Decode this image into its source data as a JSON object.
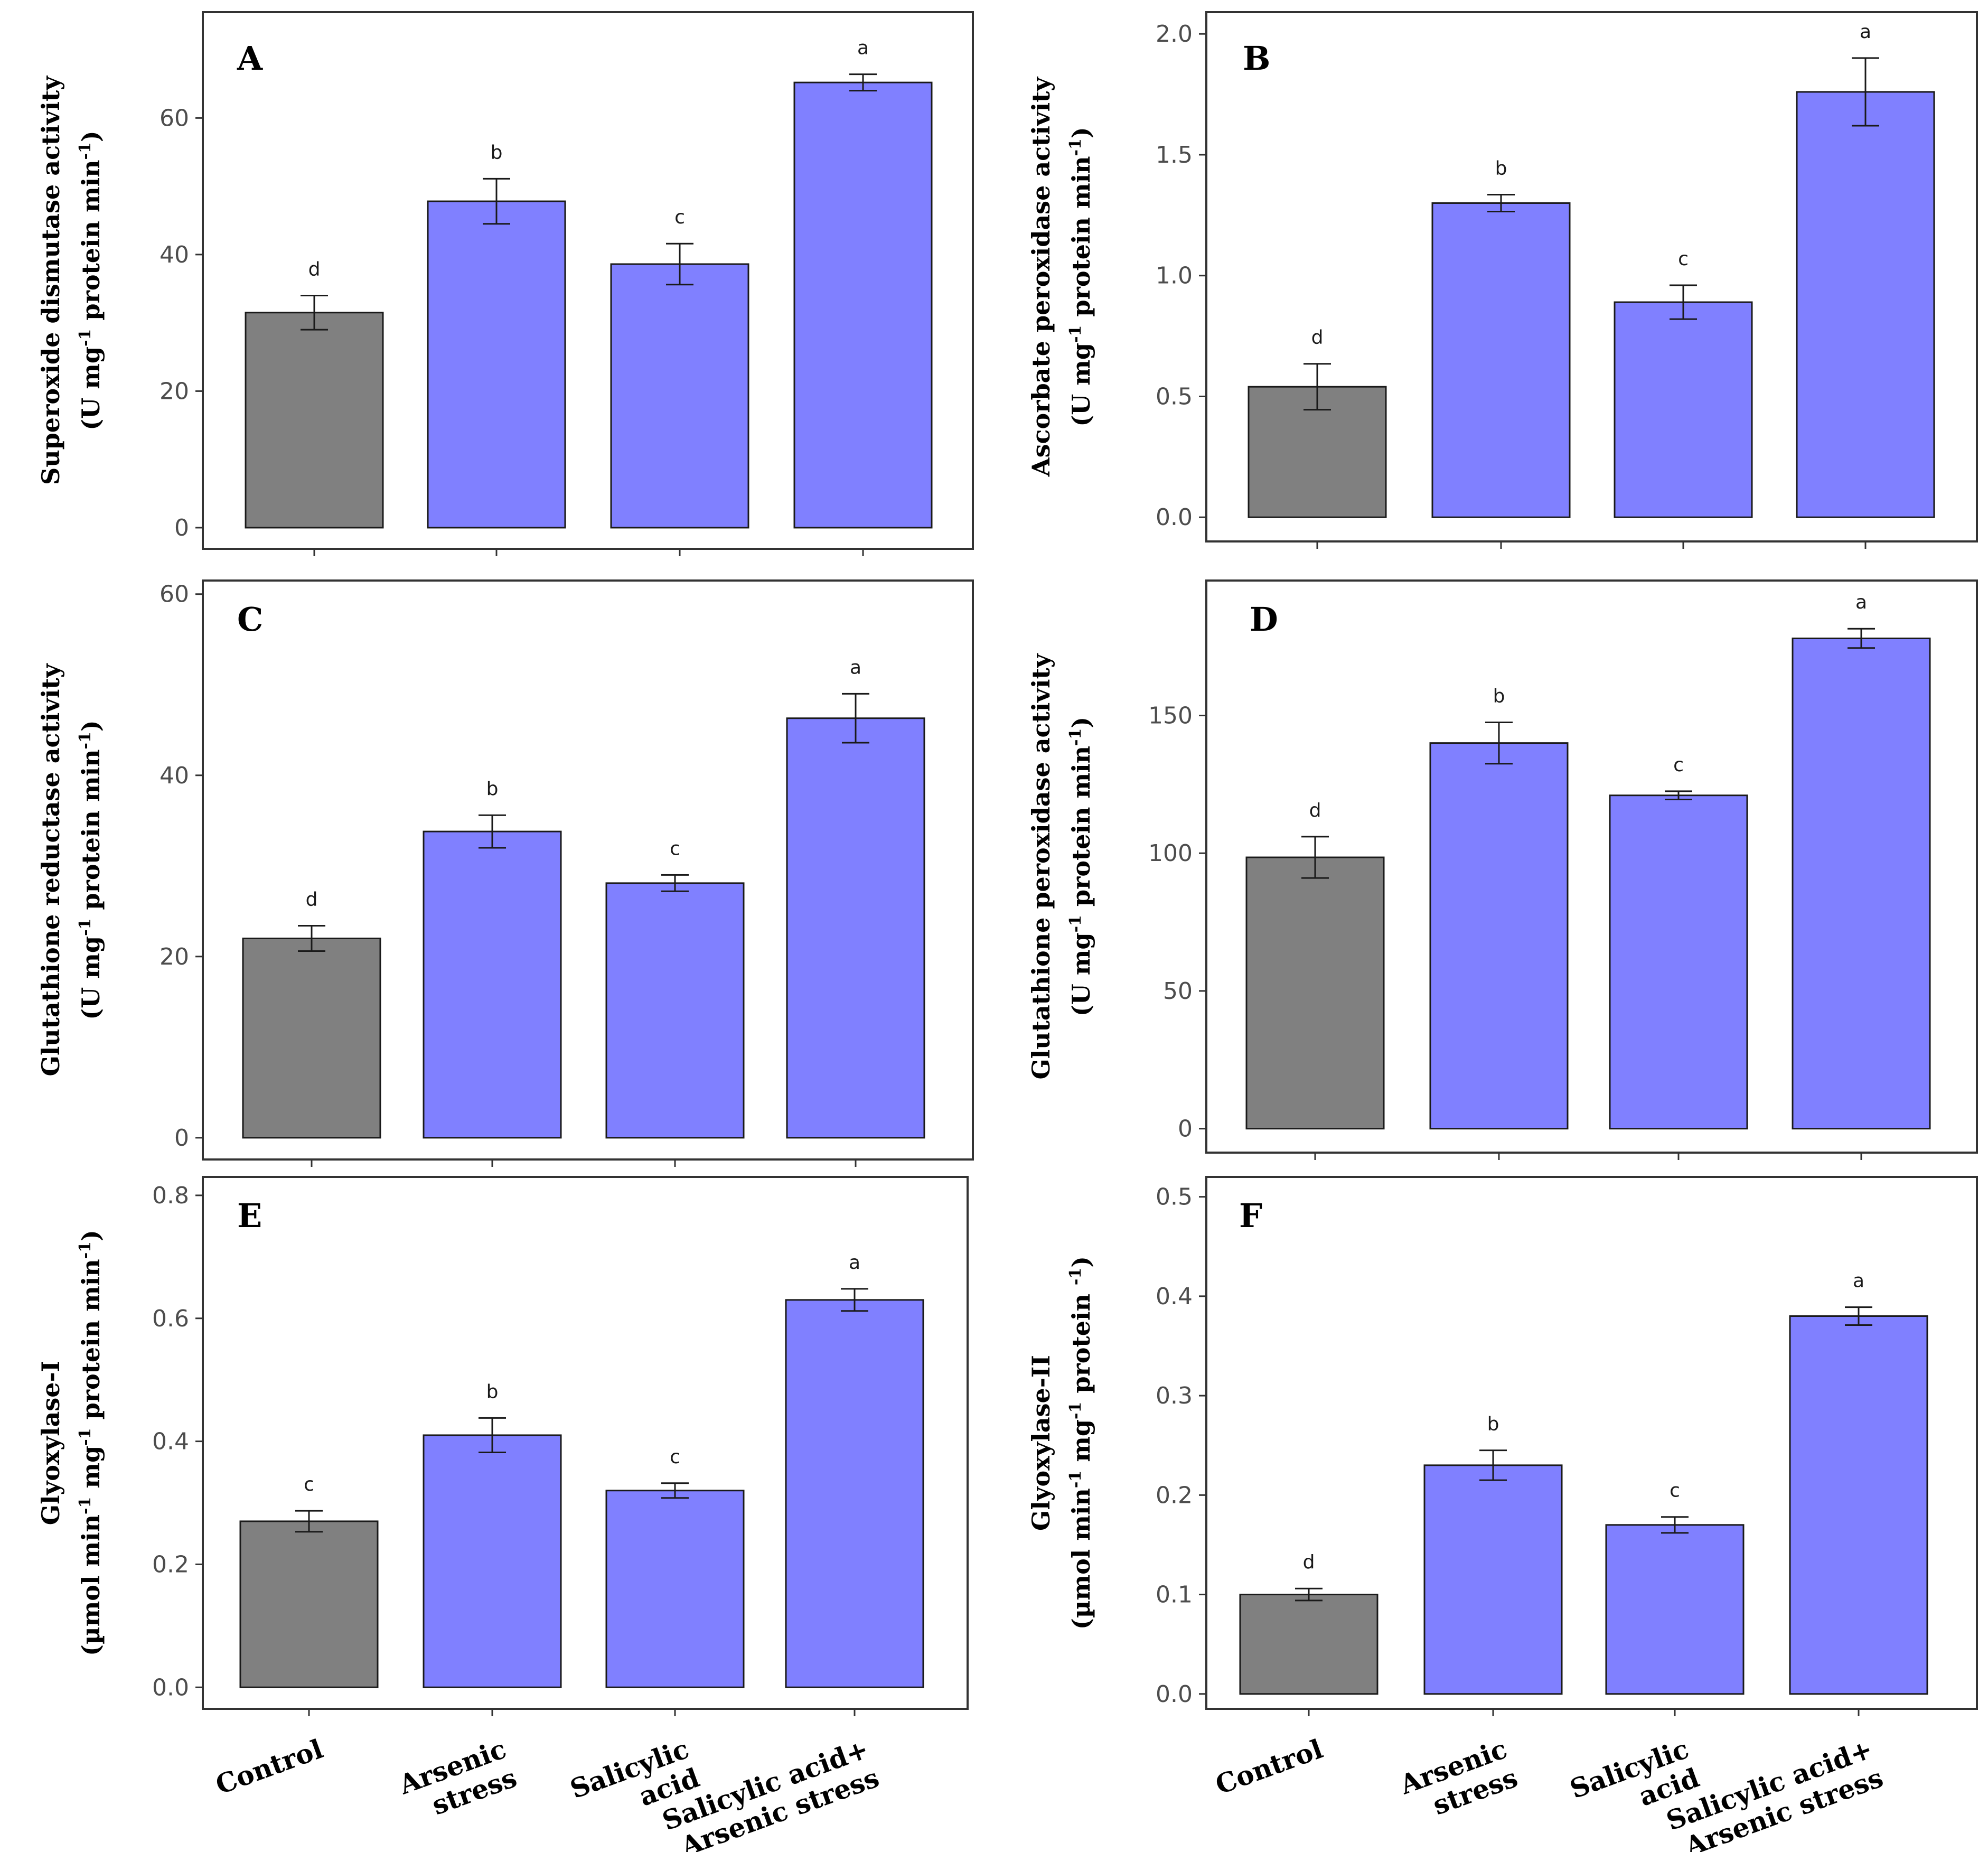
{
  "chart_data": [
    {
      "type": "bar",
      "panel": "A",
      "ylabel_line1": "Superoxide dismutase activity",
      "ylabel_line2": "(U mg-1 protein min-1)",
      "ylabel_line2_parts": [
        "(U mg",
        "-1",
        " protein min",
        "-1",
        ")"
      ],
      "categories": [
        "Control",
        "Arsenic stress",
        "Salicylic acid",
        "Salicylic acid+ Arsenic stress"
      ],
      "values": [
        31.5,
        47.8,
        38.6,
        65.2
      ],
      "errors": [
        2.5,
        3.3,
        3.0,
        1.2
      ],
      "significance": [
        "d",
        "b",
        "c",
        "a"
      ],
      "ylim": [
        -3.1,
        75.5
      ],
      "yticks": [
        0,
        20,
        40,
        60
      ],
      "ytick_labels": [
        "0",
        "20",
        "40",
        "60"
      ]
    },
    {
      "type": "bar",
      "panel": "B",
      "ylabel_line1": "Ascorbate peroxidase activity",
      "ylabel_line2": "(U mg-1 protein min-1)",
      "ylabel_line2_parts": [
        "(U mg",
        "-1",
        " protein min",
        "-1",
        ")"
      ],
      "categories": [
        "Control",
        "Arsenic stress",
        "Salicylic acid",
        "Salicylic acid+ Arsenic stress"
      ],
      "values": [
        0.54,
        1.3,
        0.89,
        1.76
      ],
      "errors": [
        0.095,
        0.035,
        0.07,
        0.14
      ],
      "significance": [
        "d",
        "b",
        "c",
        "a"
      ],
      "ylim": [
        -0.1,
        2.09
      ],
      "yticks": [
        0,
        0.5,
        1.0,
        1.5,
        2.0
      ],
      "ytick_labels": [
        "0.0",
        "0.5",
        "1.0",
        "1.5",
        "2.0"
      ]
    },
    {
      "type": "bar",
      "panel": "C",
      "ylabel_line1": "Glutathione reductase activity",
      "ylabel_line2": "(U mg-1 protein min-1)",
      "ylabel_line2_parts": [
        "(U mg",
        "-1",
        " protein min",
        "-1",
        ")"
      ],
      "categories": [
        "Control",
        "Arsenic stress",
        "Salicylic acid",
        "Salicylic acid+ Arsenic stress"
      ],
      "values": [
        22.0,
        33.8,
        28.1,
        46.3
      ],
      "errors": [
        1.4,
        1.8,
        0.9,
        2.7
      ],
      "significance": [
        "d",
        "b",
        "c",
        "a"
      ],
      "ylim": [
        -2.4,
        61.5
      ],
      "yticks": [
        0,
        20,
        40,
        60
      ],
      "ytick_labels": [
        "0",
        "20",
        "40",
        "60"
      ]
    },
    {
      "type": "bar",
      "panel": "D",
      "ylabel_line1": "Glutathione peroxidase activity",
      "ylabel_line2": "(U mg-1 protein min-1)",
      "ylabel_line2_parts": [
        "(U mg",
        "-1",
        " protein min",
        "-1",
        ")"
      ],
      "categories": [
        "Control",
        "Arsenic stress",
        "Salicylic acid",
        "Salicylic acid+ Arsenic stress"
      ],
      "values": [
        98.5,
        140.0,
        121.0,
        178.0
      ],
      "errors": [
        7.5,
        7.5,
        1.5,
        3.5
      ],
      "significance": [
        "d",
        "b",
        "c",
        "a"
      ],
      "ylim": [
        -8.7,
        199.0
      ],
      "yticks": [
        0,
        50,
        100,
        150
      ],
      "ytick_labels": [
        "0",
        "50",
        "100",
        "150"
      ]
    },
    {
      "type": "bar",
      "panel": "E",
      "ylabel_line1": "Glyoxylase-I",
      "ylabel_line2": "(µmol min-1 mg-1 protein min-1)",
      "ylabel_line2_parts": [
        "(µmol min",
        "-1",
        " mg",
        "-1",
        " protein min",
        "-1",
        ")"
      ],
      "categories": [
        "Control",
        "Arsenic stress",
        "Salicylic acid",
        "Salicylic acid+ Arsenic stress"
      ],
      "values": [
        0.27,
        0.41,
        0.32,
        0.63
      ],
      "errors": [
        0.017,
        0.028,
        0.012,
        0.018
      ],
      "significance": [
        "c",
        "b",
        "c",
        "a"
      ],
      "ylim": [
        -0.035,
        0.83
      ],
      "yticks": [
        0,
        0.2,
        0.4,
        0.6,
        0.8
      ],
      "ytick_labels": [
        "0.0",
        "0.2",
        "0.4",
        "0.6",
        "0.8"
      ]
    },
    {
      "type": "bar",
      "panel": "F",
      "ylabel_line1": "Glyoxylase-II",
      "ylabel_line2": "(µmol min-1 mg-1 protein -1)",
      "ylabel_line2_parts": [
        "(µmol min",
        "-1",
        " mg",
        "-1",
        " protein ",
        "-1",
        ")"
      ],
      "categories": [
        "Control",
        "Arsenic stress",
        "Salicylic acid",
        "Salicylic acid+ Arsenic stress"
      ],
      "values": [
        0.1,
        0.23,
        0.17,
        0.38
      ],
      "errors": [
        0.006,
        0.015,
        0.008,
        0.009
      ],
      "significance": [
        "d",
        "b",
        "c",
        "a"
      ],
      "ylim": [
        -0.015,
        0.52
      ],
      "yticks": [
        0,
        0.1,
        0.2,
        0.3,
        0.4,
        0.5
      ],
      "ytick_labels": [
        "0.0",
        "0.1",
        "0.2",
        "0.3",
        "0.4",
        "0.5"
      ]
    }
  ],
  "x_axis_labels": [
    [
      "Control"
    ],
    [
      "Arsenic",
      "stress"
    ],
    [
      "Salicylic",
      "acid"
    ],
    [
      "Salicylic acid+",
      "Arsenic stress"
    ]
  ],
  "colors": {
    "control_bar": "#808080",
    "treatment_bar": "#8080ff",
    "frame": "#333333",
    "error_bar": "#1a1a1a"
  }
}
